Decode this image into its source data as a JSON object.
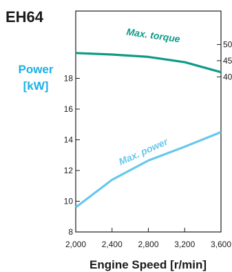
{
  "chart_data": {
    "type": "line",
    "model": "EH64",
    "xlabel": "Engine Speed [r/min]",
    "ylabel_line1": "Power",
    "ylabel_line2": "[kW]",
    "xlim": [
      2000,
      3600
    ],
    "ylim": [
      8,
      20.5
    ],
    "x_ticks": [
      2000,
      2400,
      2800,
      3200,
      3600
    ],
    "x_tick_labels": [
      "2,000",
      "2,400",
      "2,800",
      "3,200",
      "3,600"
    ],
    "y_ticks": [
      8,
      10,
      12,
      14,
      16,
      18
    ],
    "y_tick_labels": [
      "8",
      "10",
      "12",
      "14",
      "16",
      "18"
    ],
    "y2_tick_labels": [
      "50",
      "45",
      "40"
    ],
    "y2_tick_values_in_left_units": [
      20.2,
      19.15,
      18.1
    ],
    "series": [
      {
        "name": "Max. power",
        "color": "#66c8ec",
        "x": [
          2000,
          2400,
          2800,
          3200,
          3600
        ],
        "y": [
          9.6,
          11.4,
          12.65,
          13.55,
          14.5
        ]
      },
      {
        "name": "Max. torque",
        "color": "#0f9a87",
        "x": [
          2000,
          2400,
          2800,
          3200,
          3600
        ],
        "y": [
          19.65,
          19.55,
          19.4,
          19.05,
          18.4
        ]
      }
    ],
    "colors": {
      "ylabel": "#1ab0e6",
      "axis": "#1a1a1a"
    },
    "grid": false
  }
}
